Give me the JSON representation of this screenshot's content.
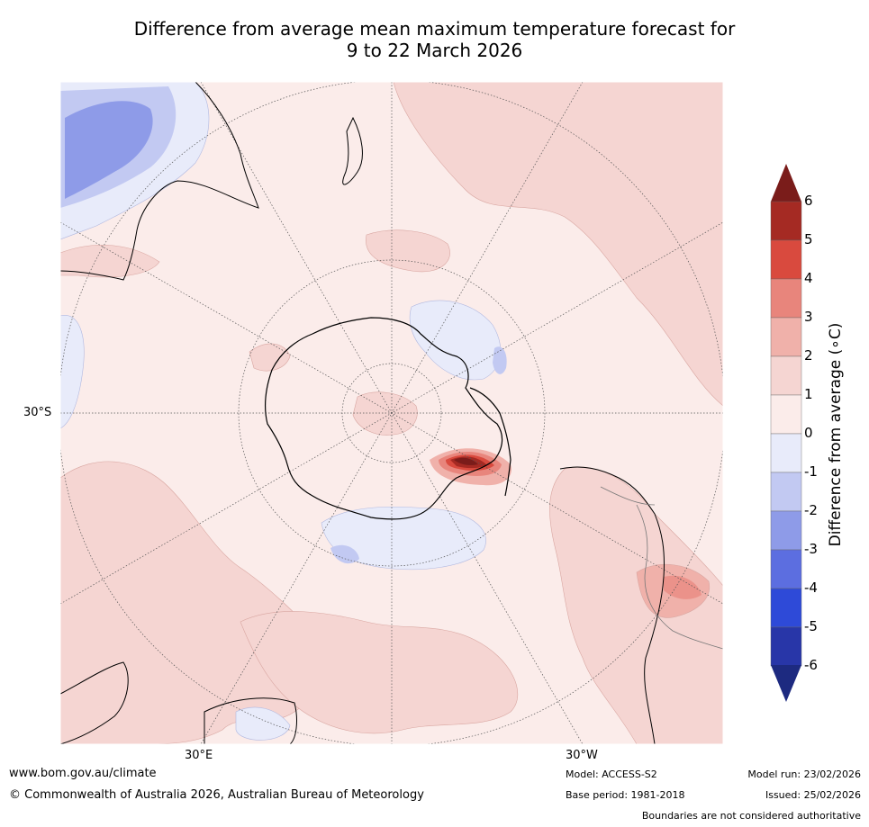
{
  "title": {
    "line1": "Difference from average mean maximum temperature forecast for",
    "line2": "9 to 22 March 2026"
  },
  "map_labels": {
    "lat_30s": "30°S",
    "lon_30e": "30°E",
    "lon_30w": "30°W"
  },
  "colorbar": {
    "title": "Difference from average (∘C)",
    "ticks": [
      "6",
      "5",
      "4",
      "3",
      "2",
      "1",
      "0",
      "-1",
      "-2",
      "-3",
      "-4",
      "-5",
      "-6"
    ],
    "colors": [
      "#a52a23",
      "#d94a3e",
      "#e8857c",
      "#f0b1aa",
      "#f5d5d2",
      "#fbecea",
      "#e8ebfa",
      "#c2c9f2",
      "#8e9be8",
      "#5c6ee0",
      "#2e4ad8",
      "#2836a8"
    ],
    "over_color": "#7a1c1a",
    "under_color": "#1d2a80"
  },
  "footer": {
    "website": "www.bom.gov.au/climate",
    "copyright": "© Commonwealth of Australia 2026, Australian Bureau of Meteorology",
    "model": "Model: ACCESS-S2",
    "base_period": "Base period: 1981-2018",
    "model_run": "Model run: 23/02/2026",
    "issued": "Issued: 25/02/2026",
    "disclaimer": "Boundaries are not considered authoritative"
  }
}
